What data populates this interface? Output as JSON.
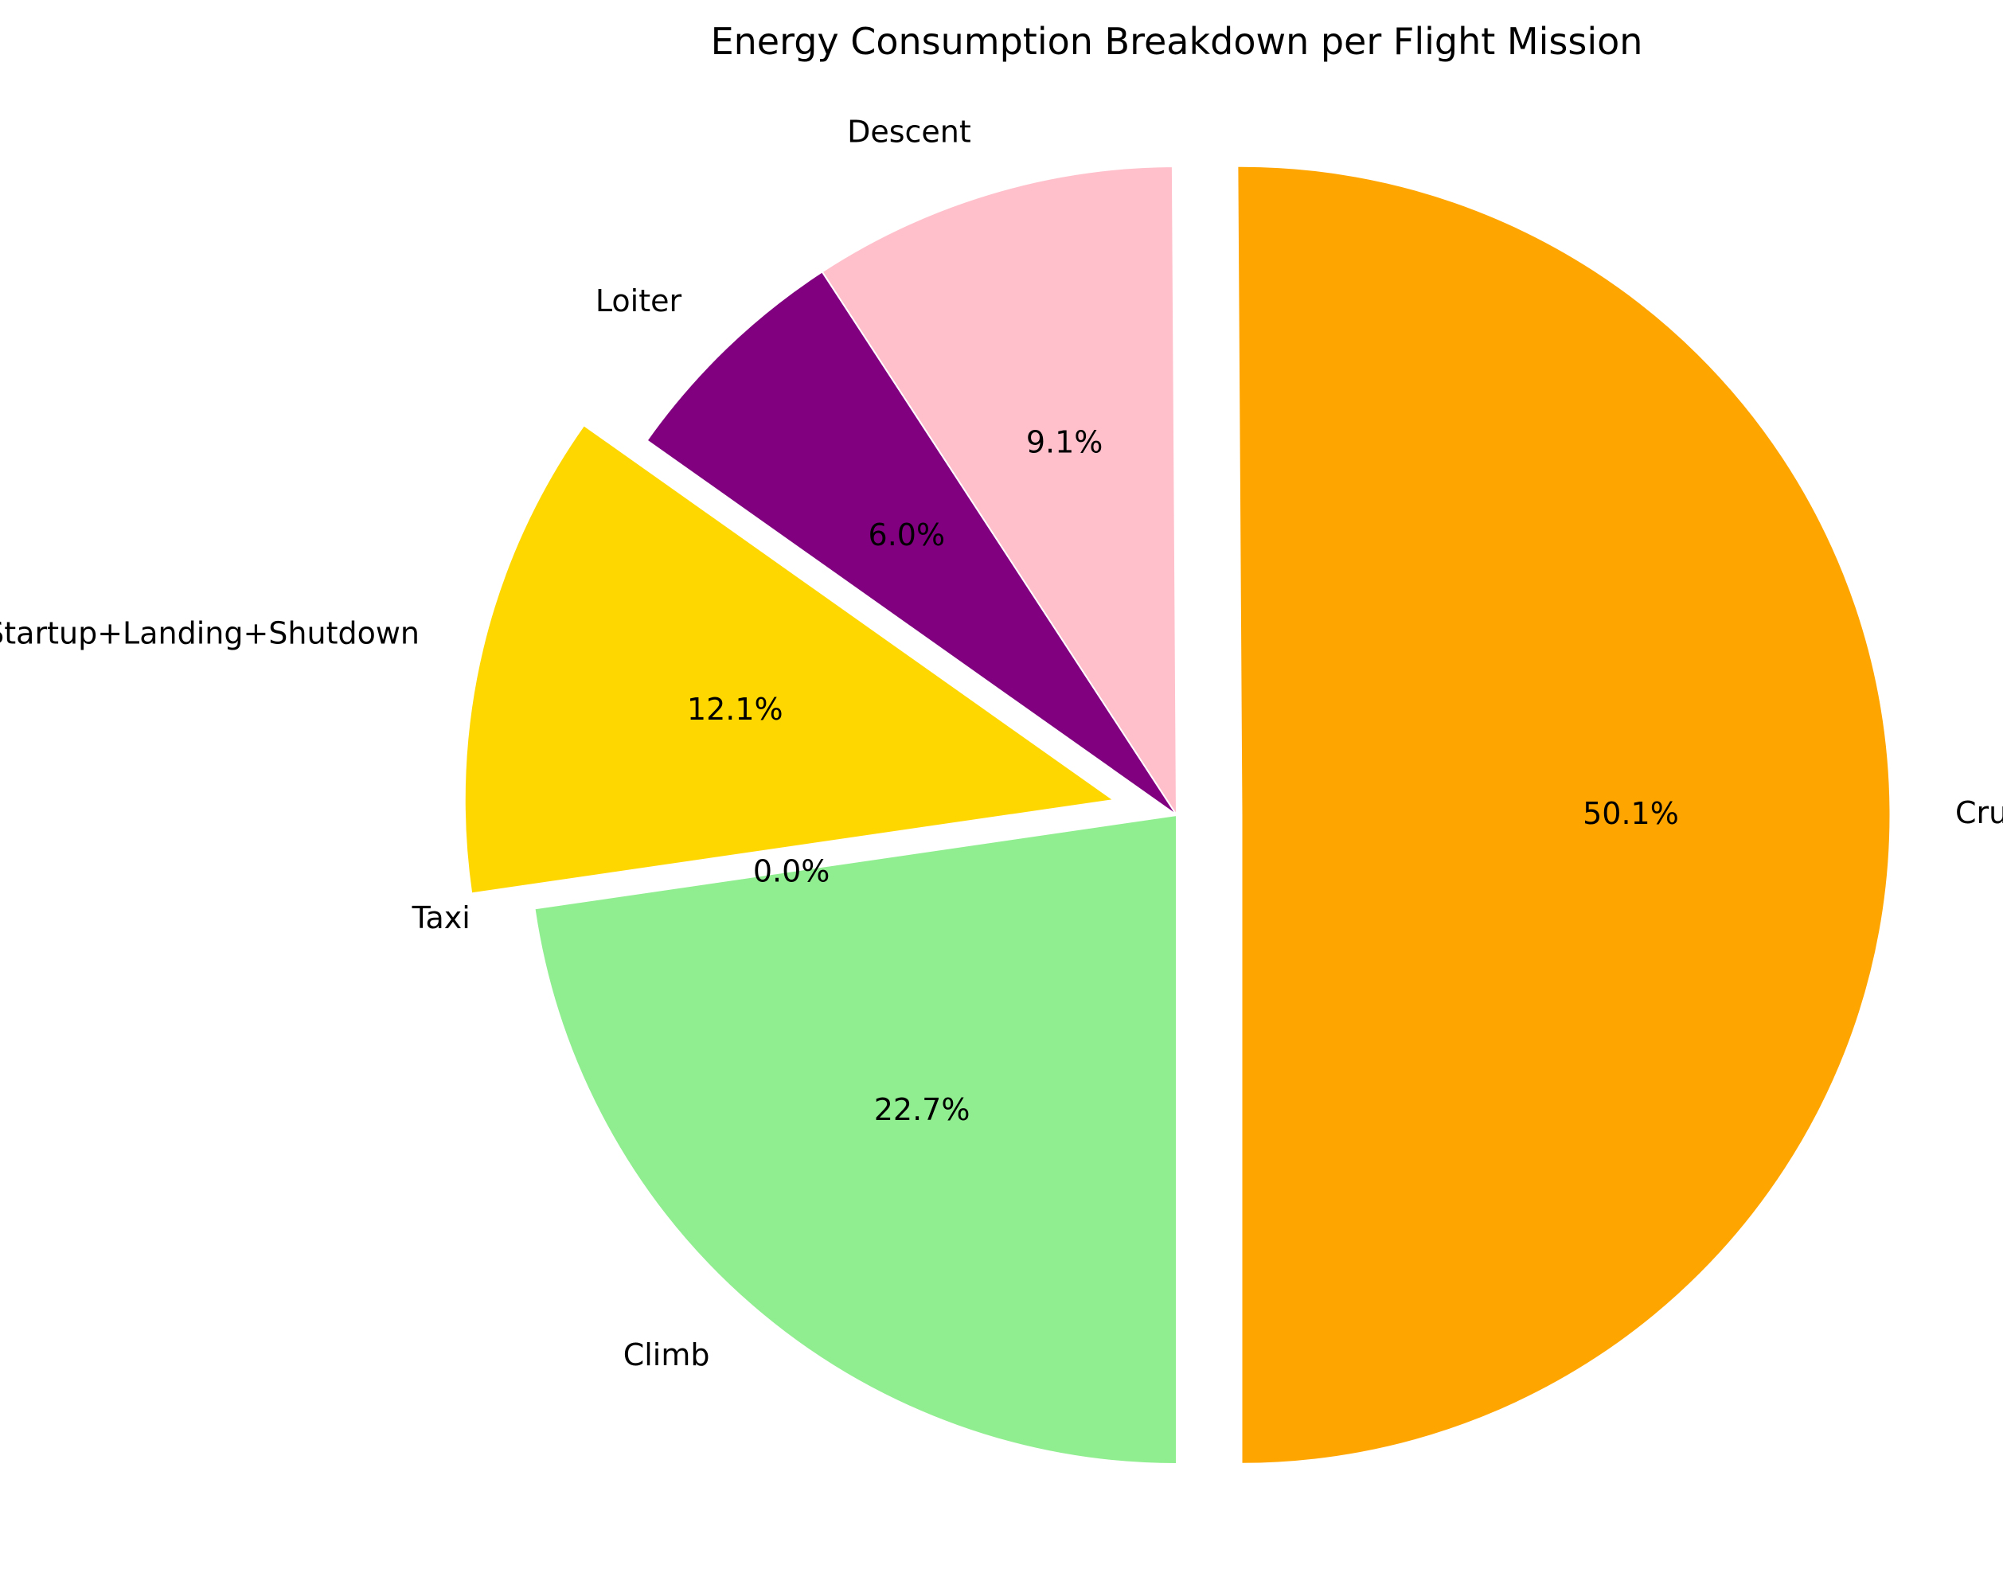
{
  "chart_data": {
    "type": "pie",
    "title": "Energy Consumption Breakdown per Flight Mission",
    "categories": [
      "Cruise",
      "Descent",
      "Loiter",
      "Startup+Landing+Shutdown",
      "Taxi",
      "Climb"
    ],
    "values": [
      50.1,
      9.1,
      6.0,
      12.1,
      0.0,
      22.7
    ],
    "percent_labels": [
      "50.1%",
      "9.1%",
      "6.0%",
      "12.1%",
      "0.0%",
      "22.7%"
    ],
    "colors": [
      "#FFA500",
      "#FFC0CB",
      "#800080",
      "#FFD700",
      "#ADD8E6",
      "#90EE90"
    ],
    "exploded": [
      true,
      false,
      false,
      true,
      false,
      false
    ],
    "start_angle_deg": -90,
    "direction": "counterclockwise",
    "legend": "none"
  }
}
